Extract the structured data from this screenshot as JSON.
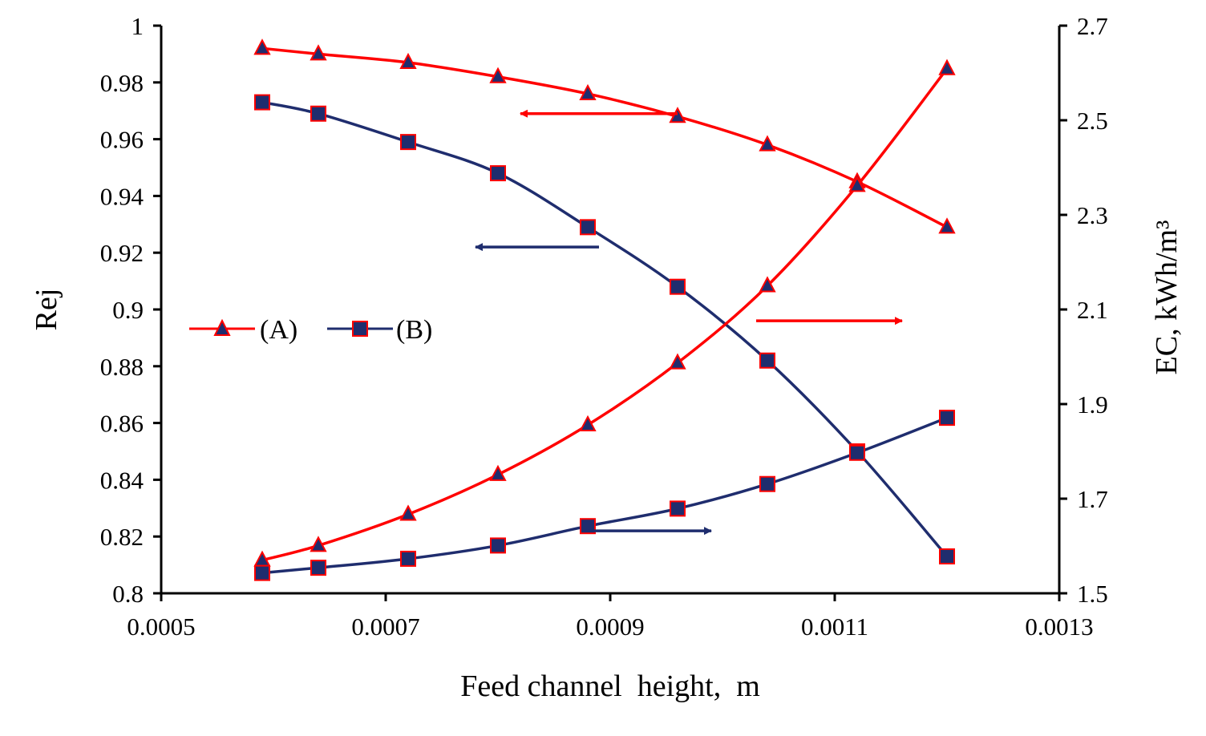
{
  "chart_data": {
    "type": "line",
    "title": "",
    "xlabel": "Feed channel  height,  m",
    "ylabel": "Rej",
    "y2label": "EC, kWh/m³",
    "xlim": [
      0.0005,
      0.0013
    ],
    "ylim": [
      0.8,
      1.0
    ],
    "y2lim": [
      1.5,
      2.7
    ],
    "x_ticks": [
      "0.0005",
      "0.0007",
      "0.0009",
      "0.0011",
      "0.0013"
    ],
    "y_ticks": [
      "0.8",
      "0.82",
      "0.84",
      "0.86",
      "0.88",
      "0.9",
      "0.92",
      "0.94",
      "0.96",
      "0.98",
      "1"
    ],
    "y2_ticks": [
      "1.5",
      "1.7",
      "1.9",
      "2.1",
      "2.3",
      "2.5",
      "2.7"
    ],
    "x": [
      0.00059,
      0.00064,
      0.00072,
      0.0008,
      0.00088,
      0.00096,
      0.00104,
      0.00112,
      0.0012
    ],
    "series": [
      {
        "name": "(A)",
        "quantity": "Rej",
        "axis": "left",
        "color": "#ff0000",
        "marker": "triangle",
        "values": [
          0.992,
          0.99,
          0.987,
          0.982,
          0.976,
          0.968,
          0.958,
          0.945,
          0.929
        ]
      },
      {
        "name": "(B)",
        "quantity": "Rej",
        "axis": "left",
        "color": "#1f2d6e",
        "marker": "square",
        "values": [
          0.973,
          0.969,
          0.959,
          0.948,
          0.929,
          0.908,
          0.882,
          0.85,
          0.813
        ]
      },
      {
        "name": "(A)",
        "quantity": "EC",
        "axis": "right",
        "color": "#ff0000",
        "marker": "triangle",
        "values": [
          1.57,
          1.601,
          1.667,
          1.751,
          1.856,
          1.987,
          2.15,
          2.362,
          2.609
        ]
      },
      {
        "name": "(B)",
        "quantity": "EC",
        "axis": "right",
        "color": "#1f2d6e",
        "marker": "square",
        "values": [
          1.543,
          1.554,
          1.573,
          1.601,
          1.642,
          1.679,
          1.731,
          1.797,
          1.871
        ]
      }
    ],
    "legend": [
      {
        "label": "(A)",
        "color": "#ff0000",
        "marker": "triangle"
      },
      {
        "label": "(B)",
        "color": "#1f2d6e",
        "marker": "square"
      }
    ],
    "annotations": [
      {
        "type": "arrow",
        "color": "#ff0000",
        "points_to": "left axis",
        "from": [
          0.00096,
          0.969
        ],
        "to": [
          0.00082,
          0.969
        ]
      },
      {
        "type": "arrow",
        "color": "#1f2d6e",
        "points_to": "left axis",
        "from": [
          0.00089,
          0.922
        ],
        "to": [
          0.00078,
          0.922
        ]
      },
      {
        "type": "arrow",
        "color": "#ff0000",
        "points_to": "right axis",
        "from": [
          0.00103,
          0.896
        ],
        "to": [
          0.00116,
          0.896
        ]
      },
      {
        "type": "arrow",
        "color": "#1f2d6e",
        "points_to": "right axis",
        "from": [
          0.00088,
          0.822
        ],
        "to": [
          0.00099,
          0.822
        ]
      }
    ],
    "grid": false,
    "legend_position": "center-left"
  }
}
